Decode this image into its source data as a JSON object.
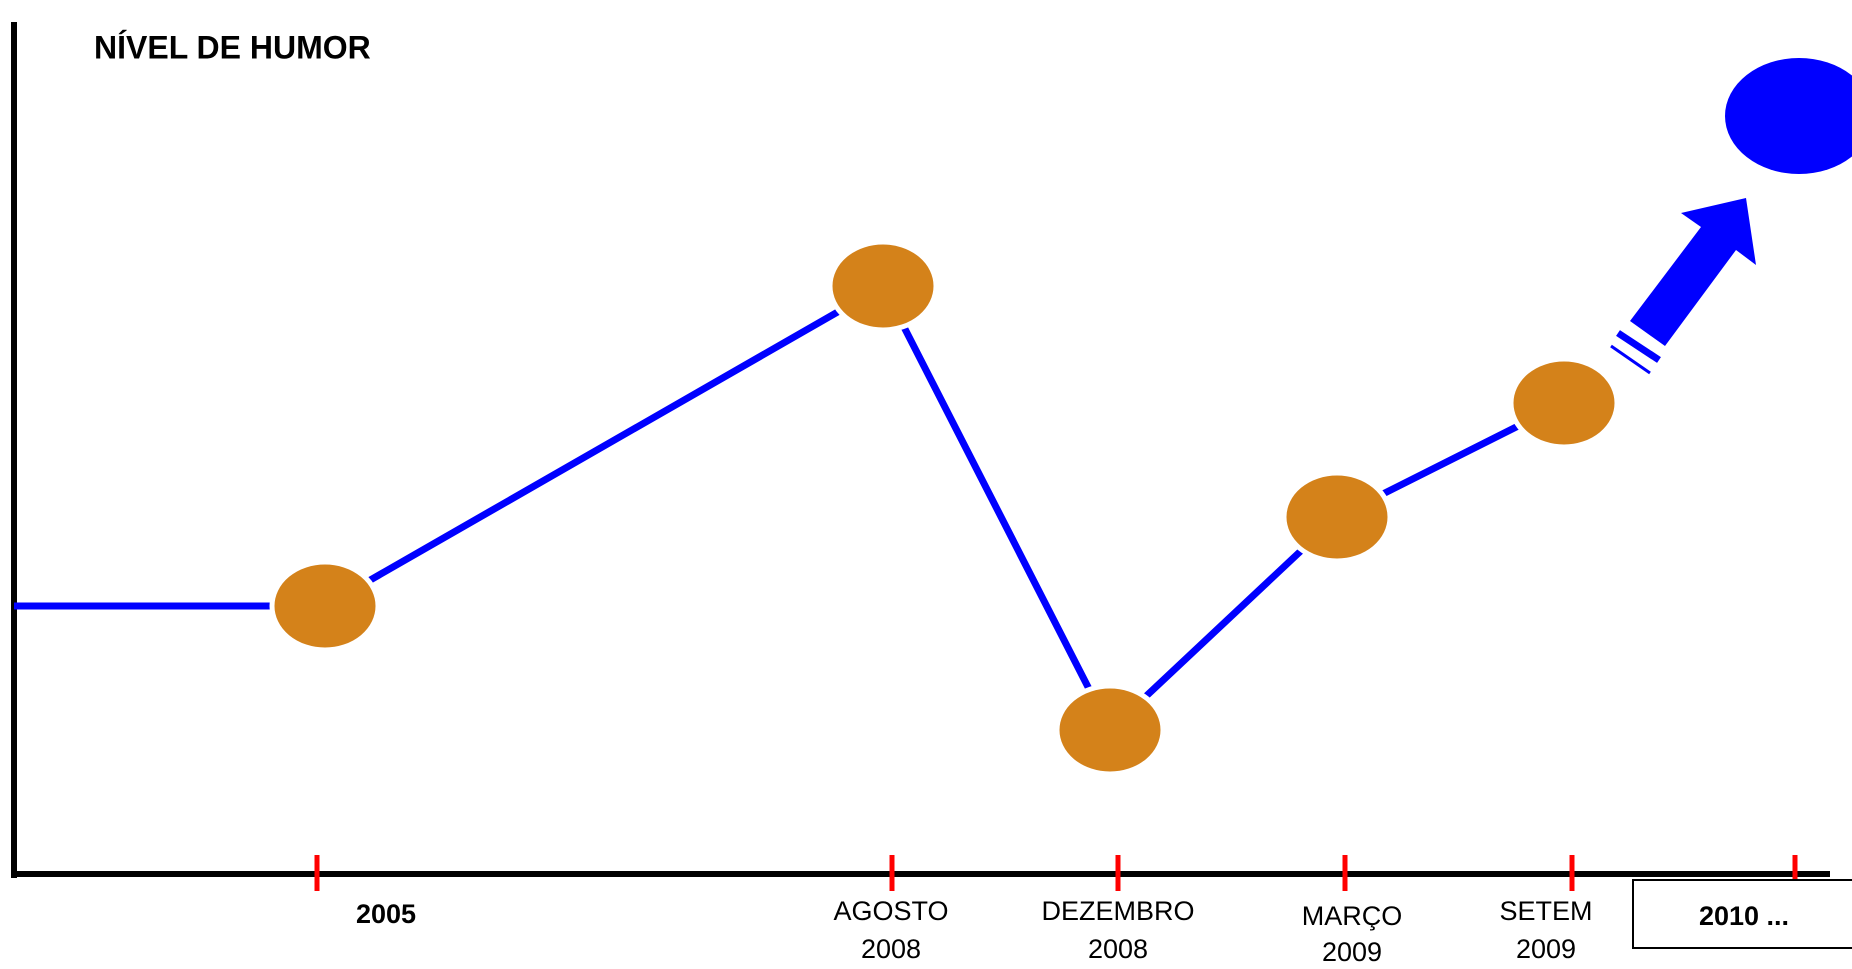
{
  "title": "NÍVEL DE HUMOR",
  "timeline": [
    {
      "lines": [
        "2005"
      ]
    },
    {
      "lines": [
        "AGOSTO",
        "2008"
      ]
    },
    {
      "lines": [
        "DEZEMBRO",
        "2008"
      ]
    },
    {
      "lines": [
        "MARÇO",
        "2009"
      ]
    },
    {
      "lines": [
        "SETEM",
        "2009"
      ]
    }
  ],
  "future_label": "2010 ..."
}
